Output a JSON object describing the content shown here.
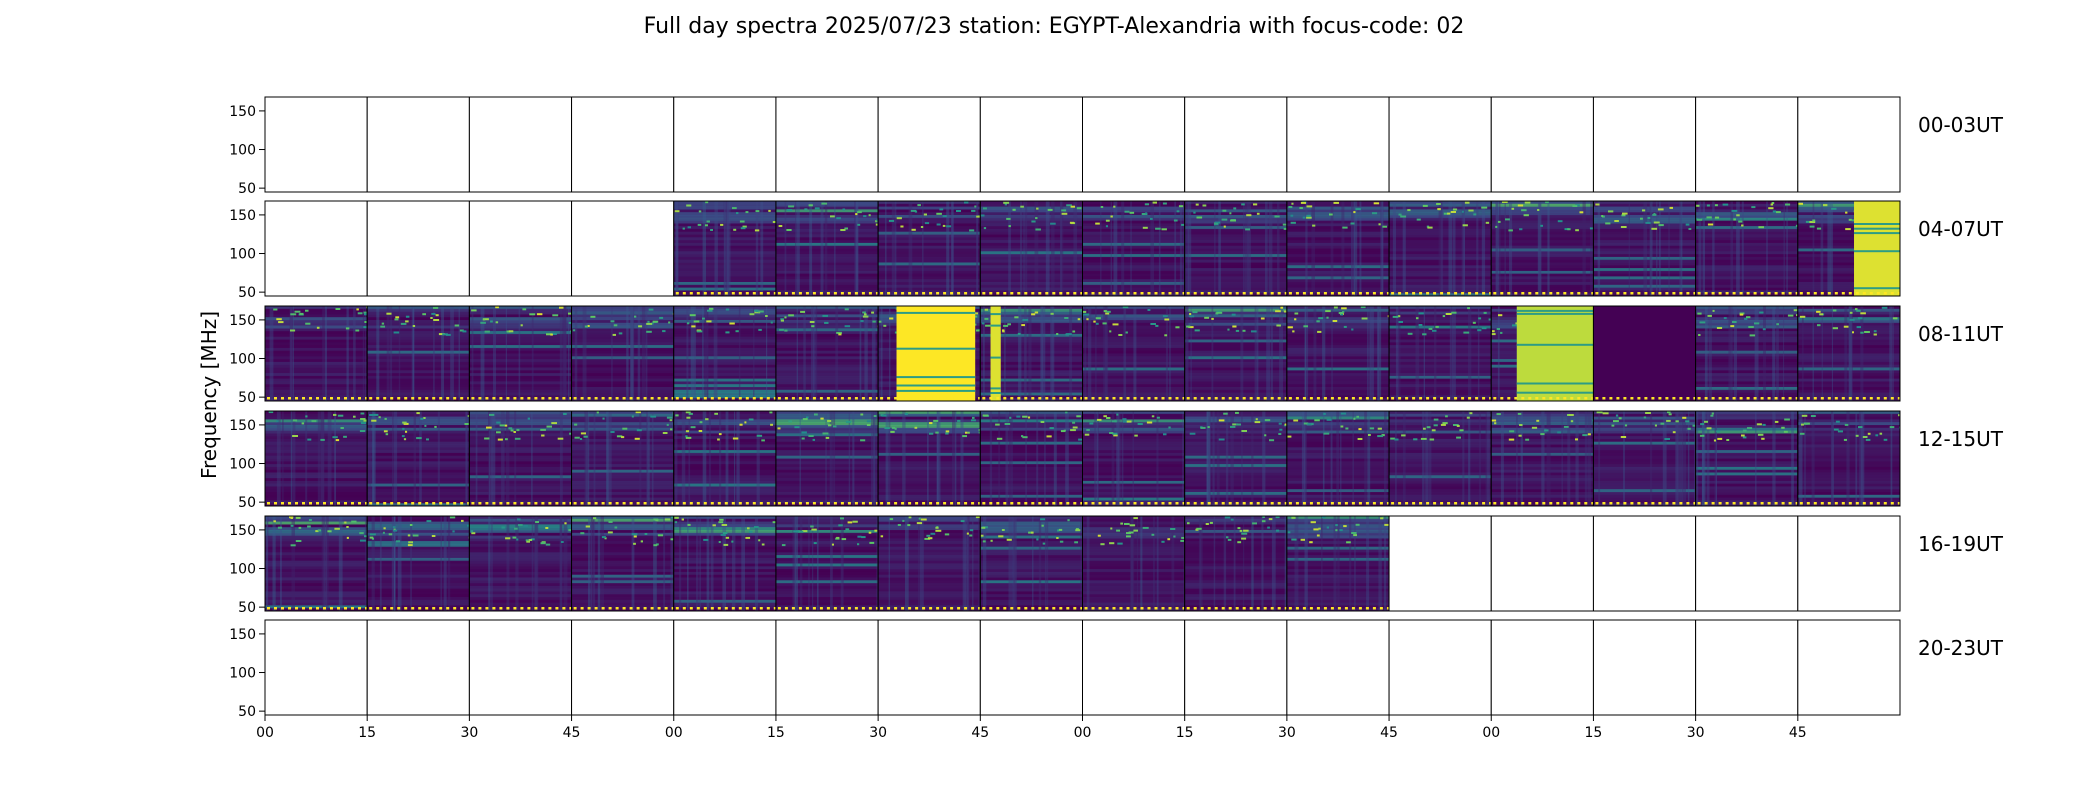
{
  "chart_data": {
    "type": "heatmap",
    "title": "Full day spectra 2025/07/23 station: EGYPT-Alexandria with focus-code: 02",
    "ylabel": "Frequency [MHz]",
    "xlabel": "",
    "ylim": [
      45,
      168
    ],
    "yticks": [
      "50",
      "100",
      "150"
    ],
    "xticks": [
      "00",
      "15",
      "30",
      "45",
      "00",
      "15",
      "30",
      "45",
      "00",
      "15",
      "30",
      "45",
      "00",
      "15",
      "30",
      "45"
    ],
    "grid": false,
    "colormap": "viridis",
    "colors": {
      "low": "#440154",
      "mid": "#21918c",
      "high": "#fde725"
    },
    "rows": [
      {
        "label": "00-03UT",
        "panels": [
          0,
          0,
          0,
          0,
          0,
          0,
          0,
          0,
          0,
          0,
          0,
          0,
          0,
          0,
          0,
          0
        ],
        "hot": []
      },
      {
        "label": "04-07UT",
        "panels": [
          0,
          0,
          0,
          0,
          1,
          1,
          1,
          1,
          1,
          1,
          1,
          1,
          1,
          1,
          1,
          1
        ],
        "hot": [
          {
            "panel": 15,
            "from": 0.55,
            "to": 1.0,
            "level": 0.95
          }
        ]
      },
      {
        "label": "08-11UT",
        "panels": [
          1,
          1,
          1,
          1,
          1,
          1,
          1,
          1,
          1,
          1,
          1,
          1,
          1,
          1,
          1,
          1
        ],
        "hot": [
          {
            "panel": 6,
            "from": 0.18,
            "to": 0.95,
            "level": 1.0
          },
          {
            "panel": 7,
            "from": 0.1,
            "to": 0.2,
            "level": 0.95
          },
          {
            "panel": 12,
            "from": 0.25,
            "to": 1.0,
            "level": 0.9
          },
          {
            "panel": 13,
            "from": 0.0,
            "to": 1.0,
            "level": 0.0
          }
        ]
      },
      {
        "label": "12-15UT",
        "panels": [
          1,
          1,
          1,
          1,
          1,
          1,
          1,
          1,
          1,
          1,
          1,
          1,
          1,
          1,
          1,
          1
        ],
        "hot": []
      },
      {
        "label": "16-19UT",
        "panels": [
          1,
          1,
          1,
          1,
          1,
          1,
          1,
          1,
          1,
          1,
          1,
          0,
          0,
          0,
          0,
          0
        ],
        "hot": []
      },
      {
        "label": "20-23UT",
        "panels": [
          0,
          0,
          0,
          0,
          0,
          0,
          0,
          0,
          0,
          0,
          0,
          0,
          0,
          0,
          0,
          0
        ],
        "hot": []
      }
    ]
  }
}
